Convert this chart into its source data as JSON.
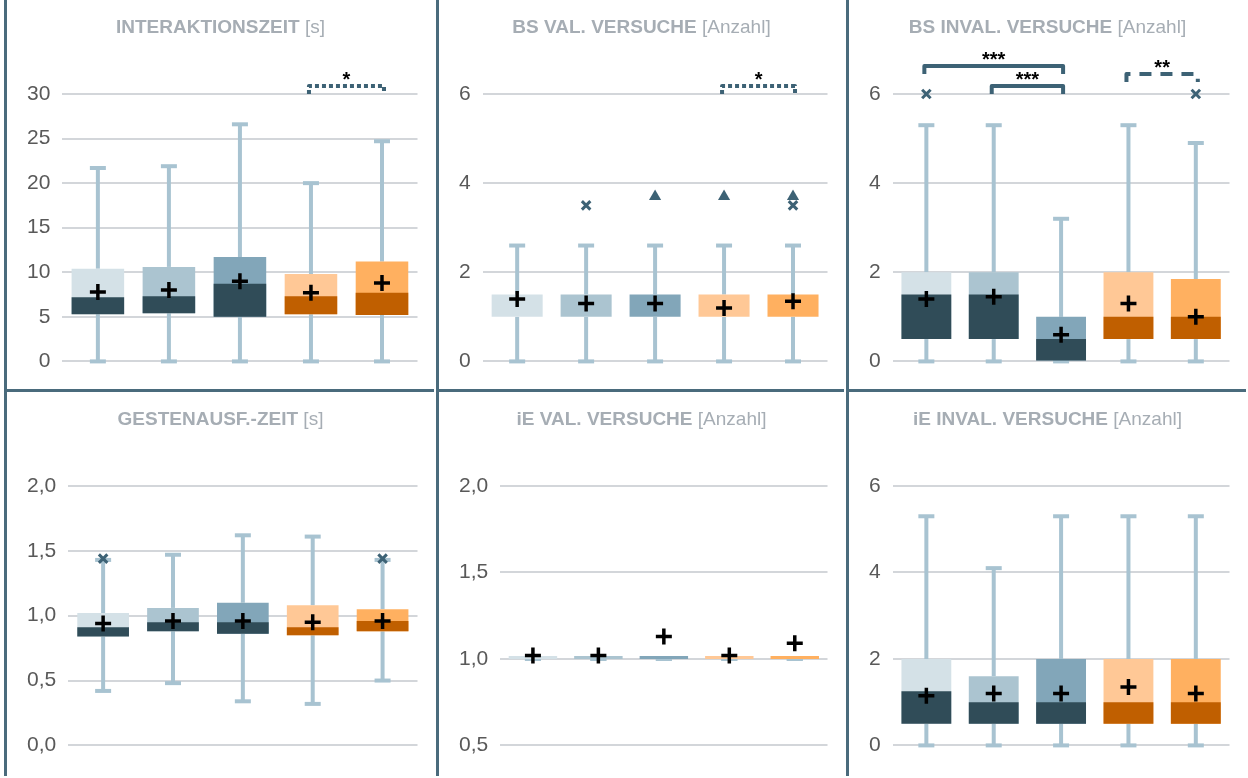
{
  "chart_data": [
    {
      "type": "box",
      "title": "INTERAKTIONSZEIT",
      "subtitle": "[s]",
      "categories": [
        null,
        null,
        null,
        null,
        null
      ],
      "ylim": [
        0,
        30
      ],
      "yticks": [
        0,
        5,
        10,
        15,
        20,
        25,
        30
      ],
      "grid": "y",
      "tick_labels": "y",
      "marker": "cross",
      "colors": [
        "#304c58",
        "#304c58",
        "#304c58",
        "#c05f00",
        "#c05f00"
      ],
      "annotations": [
        "*"
      ],
      "series": [
        {
          "color": "#a8c3d1",
          "colors": [
            "#d4e1e7",
            "#abc4d0",
            "#82a6b9",
            "#ffc896",
            "#ffb060"
          ],
          "boxes": [
            {
              "low": 0,
              "q1": 5.3,
              "median": 7.2,
              "q3": 10.4,
              "high": 21.7,
              "mean": 7.8
            },
            {
              "low": 0,
              "q1": 5.4,
              "median": 7.3,
              "q3": 10.6,
              "high": 21.9,
              "mean": 8.0
            },
            {
              "low": 0,
              "q1": 5.0,
              "median": 8.7,
              "q3": 11.7,
              "high": 26.6,
              "mean": 9.0
            },
            {
              "low": 0,
              "q1": 5.3,
              "median": 7.3,
              "q3": 9.8,
              "high": 20.0,
              "mean": 7.7
            },
            {
              "low": 0,
              "q1": 5.2,
              "median": 7.7,
              "q3": 11.2,
              "high": 24.7,
              "mean": 8.8
            }
          ]
        }
      ]
    },
    {
      "type": "box",
      "title": "BS VAL. VERSUCHE",
      "subtitle": "[Anzahl]",
      "categories": [
        null,
        null,
        null,
        null,
        null
      ],
      "ylim": [
        0,
        6
      ],
      "yticks": [
        0,
        2,
        4,
        6
      ],
      "grid": "y",
      "tick_labels": "y",
      "marker": "cross",
      "colors": [
        "#304c58",
        "#304c58",
        "#304c58",
        "#c05f00",
        "#c05f00"
      ],
      "annotations": [
        "*"
      ],
      "series": [
        {
          "color": "#a8c3d1",
          "colors": [
            "#d4e1e7",
            "#abc4d0",
            "#82a6b9",
            "#ffc896",
            "#ffb060"
          ],
          "boxes": [
            {
              "low": 0,
              "q1": 1,
              "median": 1,
              "q3": 1.5,
              "high": 2.6,
              "mean": 1.4
            },
            {
              "low": 0,
              "q1": 1,
              "median": 1,
              "q3": 1.5,
              "high": 2.6,
              "mean": 1.3,
              "outliers": [
                3.5
              ]
            },
            {
              "low": 0,
              "q1": 1,
              "median": 1,
              "q3": 1.5,
              "high": 2.6,
              "mean": 1.3
            },
            {
              "low": 0,
              "q1": 1,
              "median": 1,
              "q3": 1.5,
              "high": 2.6,
              "mean": 1.2
            },
            {
              "low": 0,
              "q1": 1,
              "median": 1,
              "q3": 1.5,
              "high": 2.6,
              "mean": 1.35,
              "outliers": [
                3.5
              ]
            }
          ]
        },
        {
          "type": "scatter",
          "marker": "triangle",
          "color": "#3d6275",
          "values": [
            null,
            null,
            3.7,
            3.7,
            3.7
          ]
        }
      ]
    },
    {
      "type": "box",
      "title": "BS INVAL. VERSUCHE",
      "subtitle": "[Anzahl]",
      "categories": [
        null,
        null,
        null,
        null,
        null
      ],
      "ylim": [
        0,
        6
      ],
      "yticks": [
        0,
        2,
        4,
        6
      ],
      "grid": "y",
      "tick_labels": "y",
      "marker": "cross",
      "colors": [
        "#304c58",
        "#304c58",
        "#304c58",
        "#c05f00",
        "#c05f00"
      ],
      "annotations": [
        "***",
        "***",
        "**"
      ],
      "series": [
        {
          "color": "#a8c3d1",
          "colors": [
            "#d4e1e7",
            "#abc4d0",
            "#82a6b9",
            "#ffc896",
            "#ffb060"
          ],
          "boxes": [
            {
              "low": 0,
              "q1": 0.5,
              "median": 1.5,
              "q3": 2,
              "high": 5.3,
              "mean": 1.4,
              "outliers": [
                6
              ]
            },
            {
              "low": 0,
              "q1": 0.5,
              "median": 1.5,
              "q3": 2,
              "high": 5.3,
              "mean": 1.45
            },
            {
              "low": 0,
              "q1": 0,
              "median": 0.5,
              "q3": 1,
              "high": 3.2,
              "mean": 0.6
            },
            {
              "low": 0,
              "q1": 0.5,
              "median": 1,
              "q3": 2,
              "high": 5.3,
              "mean": 1.3
            },
            {
              "low": 0,
              "q1": 0.5,
              "median": 1,
              "q3": 1.85,
              "high": 4.9,
              "mean": 1.0,
              "outliers": [
                6
              ]
            }
          ]
        }
      ]
    },
    {
      "type": "box",
      "title": "GESTENAUSF.-ZEIT",
      "subtitle": "[s]",
      "categories": [
        null,
        null,
        null,
        null,
        null
      ],
      "ylim": [
        0,
        2
      ],
      "yticks": [
        {
          "value": 0,
          "label": "0,0"
        },
        {
          "value": 0.5,
          "label": "0,5"
        },
        {
          "value": 1,
          "label": "1,0"
        },
        {
          "value": 1.5,
          "label": "1,5"
        },
        {
          "value": 2,
          "label": "2,0"
        }
      ],
      "grid": "y",
      "tick_labels": "y",
      "marker": "cross",
      "colors": [
        "#304c58",
        "#304c58",
        "#304c58",
        "#c05f00",
        "#c05f00"
      ],
      "series": [
        {
          "color": "#a8c3d1",
          "colors": [
            "#d4e1e7",
            "#abc4d0",
            "#82a6b9",
            "#ffc896",
            "#ffb060"
          ],
          "boxes": [
            {
              "low": 0.42,
              "q1": 0.84,
              "median": 0.91,
              "q3": 1.02,
              "high": 1.43,
              "mean": 0.94,
              "outliers": [
                1.44
              ]
            },
            {
              "low": 0.48,
              "q1": 0.88,
              "median": 0.95,
              "q3": 1.06,
              "high": 1.47,
              "mean": 0.96
            },
            {
              "low": 0.34,
              "q1": 0.86,
              "median": 0.95,
              "q3": 1.1,
              "high": 1.62,
              "mean": 0.96
            },
            {
              "low": 0.32,
              "q1": 0.85,
              "median": 0.91,
              "q3": 1.08,
              "high": 1.61,
              "mean": 0.95
            },
            {
              "low": 0.5,
              "q1": 0.88,
              "median": 0.96,
              "q3": 1.05,
              "high": 1.43,
              "mean": 0.96,
              "outliers": [
                1.44
              ]
            }
          ]
        }
      ]
    },
    {
      "type": "box",
      "title": "iE VAL. VERSUCHE",
      "subtitle": "[Anzahl]",
      "categories": [
        null,
        null,
        null,
        null,
        null
      ],
      "ylim": [
        0.5,
        2
      ],
      "yticks": [
        {
          "value": 0.5,
          "label": "0,5"
        },
        {
          "value": 1,
          "label": "1,0"
        },
        {
          "value": 1.5,
          "label": "1,5"
        },
        {
          "value": 2,
          "label": "2,0"
        }
      ],
      "grid": "y",
      "tick_labels": "y",
      "marker": "cross",
      "colors": [
        "#304c58",
        "#304c58",
        "#304c58",
        "#c05f00",
        "#c05f00"
      ],
      "series": [
        {
          "color": "#a8c3d1",
          "colors": [
            "#d4e1e7",
            "#abc4d0",
            "#82a6b9",
            "#ffc896",
            "#ffb060"
          ],
          "boxes": [
            {
              "low": 1,
              "q1": 1,
              "median": 1,
              "q3": 1,
              "high": 1,
              "mean": 1.02
            },
            {
              "low": 1,
              "q1": 1,
              "median": 1,
              "q3": 1,
              "high": 1,
              "mean": 1.02
            },
            {
              "low": 1,
              "q1": 1,
              "median": 1,
              "q3": 1,
              "high": 1,
              "mean": 1.13
            },
            {
              "low": 1,
              "q1": 1,
              "median": 1,
              "q3": 1,
              "high": 1,
              "mean": 1.02
            },
            {
              "low": 1,
              "q1": 1,
              "median": 1,
              "q3": 1,
              "high": 1,
              "mean": 1.09
            }
          ]
        }
      ]
    },
    {
      "type": "box",
      "title": "iE INVAL. VERSUCHE",
      "subtitle": "[Anzahl]",
      "categories": [
        null,
        null,
        null,
        null,
        null
      ],
      "ylim": [
        0,
        6
      ],
      "yticks": [
        0,
        2,
        4,
        6
      ],
      "grid": "y",
      "tick_labels": "y",
      "marker": "cross",
      "colors": [
        "#304c58",
        "#304c58",
        "#304c58",
        "#c05f00",
        "#c05f00"
      ],
      "series": [
        {
          "color": "#a8c3d1",
          "colors": [
            "#d4e1e7",
            "#abc4d0",
            "#82a6b9",
            "#ffc896",
            "#ffb060"
          ],
          "boxes": [
            {
              "low": 0,
              "q1": 0.5,
              "median": 1.25,
              "q3": 2,
              "high": 5.3,
              "mean": 1.15
            },
            {
              "low": 0,
              "q1": 0.5,
              "median": 1,
              "q3": 1.6,
              "high": 4.1,
              "mean": 1.2
            },
            {
              "low": 0,
              "q1": 0.5,
              "median": 1,
              "q3": 2,
              "high": 5.3,
              "mean": 1.2
            },
            {
              "low": 0,
              "q1": 0.5,
              "median": 1,
              "q3": 2,
              "high": 5.3,
              "mean": 1.35
            },
            {
              "low": 0,
              "q1": 0.5,
              "median": 1,
              "q3": 2,
              "high": 5.3,
              "mean": 1.2
            }
          ]
        }
      ]
    }
  ]
}
